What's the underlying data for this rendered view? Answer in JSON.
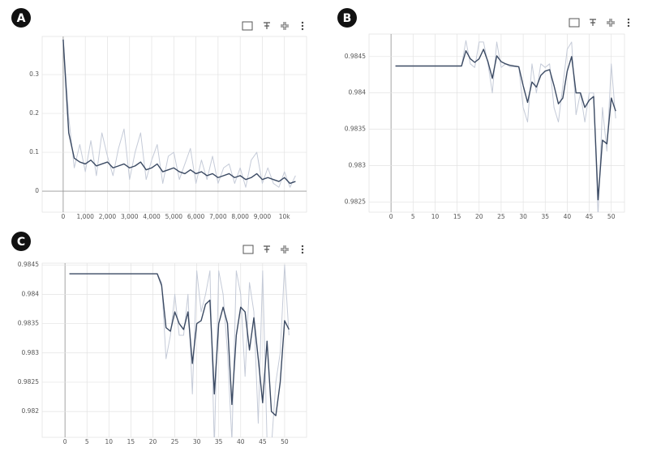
{
  "chart_data": [
    {
      "panel": "A",
      "type": "line",
      "grid": true,
      "x": [
        0,
        250,
        500,
        750,
        1000,
        1250,
        1500,
        1750,
        2000,
        2250,
        2500,
        2750,
        3000,
        3250,
        3500,
        3750,
        4000,
        4250,
        4500,
        4750,
        5000,
        5250,
        5500,
        5750,
        6000,
        6250,
        6500,
        6750,
        7000,
        7250,
        7500,
        7750,
        8000,
        8250,
        8500,
        8750,
        9000,
        9250,
        9500,
        9750,
        10000,
        10250,
        10500
      ],
      "series": [
        {
          "color": "#c5cbd8",
          "values": [
            0.39,
            0.19,
            0.06,
            0.12,
            0.05,
            0.13,
            0.04,
            0.15,
            0.09,
            0.04,
            0.11,
            0.16,
            0.03,
            0.1,
            0.15,
            0.03,
            0.08,
            0.12,
            0.02,
            0.09,
            0.1,
            0.03,
            0.07,
            0.11,
            0.02,
            0.08,
            0.03,
            0.09,
            0.02,
            0.06,
            0.07,
            0.02,
            0.06,
            0.01,
            0.08,
            0.1,
            0.02,
            0.06,
            0.02,
            0.01,
            0.05,
            0.01,
            0.04
          ]
        },
        {
          "color": "#3b4a63",
          "values": [
            0.39,
            0.15,
            0.085,
            0.075,
            0.07,
            0.08,
            0.065,
            0.07,
            0.075,
            0.06,
            0.065,
            0.07,
            0.06,
            0.065,
            0.075,
            0.055,
            0.06,
            0.07,
            0.05,
            0.055,
            0.06,
            0.05,
            0.045,
            0.055,
            0.045,
            0.05,
            0.04,
            0.045,
            0.035,
            0.04,
            0.045,
            0.035,
            0.04,
            0.03,
            0.035,
            0.045,
            0.03,
            0.035,
            0.03,
            0.025,
            0.035,
            0.02,
            0.025
          ]
        }
      ],
      "xlim": [
        -950,
        11000
      ],
      "xticks": [
        0,
        {
          "value": 1000,
          "label": "1,000"
        },
        {
          "value": 2000,
          "label": "2,000"
        },
        {
          "value": 3000,
          "label": "3,000"
        },
        {
          "value": 4000,
          "label": "4,000"
        },
        {
          "value": 5000,
          "label": "5,000"
        },
        {
          "value": 6000,
          "label": "6,000"
        },
        {
          "value": 7000,
          "label": "7,000"
        },
        {
          "value": 8000,
          "label": "8,000"
        },
        {
          "value": 9000,
          "label": "9,000"
        },
        {
          "value": 10000,
          "label": "10k"
        }
      ],
      "ylim": [
        -0.054,
        0.398
      ],
      "yticks": [
        0,
        0.1,
        0.2,
        0.3
      ]
    },
    {
      "panel": "B",
      "type": "line",
      "grid": true,
      "x": [
        1,
        16,
        17,
        18,
        19,
        20,
        21,
        22,
        23,
        24,
        25,
        26,
        27,
        28,
        29,
        30,
        31,
        32,
        33,
        34,
        35,
        36,
        37,
        38,
        39,
        40,
        41,
        42,
        43,
        44,
        45,
        46,
        47,
        48,
        49,
        50,
        51
      ],
      "series": [
        {
          "color": "#c5cbd8",
          "values": [
            0.98437,
            0.98437,
            0.98472,
            0.9844,
            0.98435,
            0.9847,
            0.9847,
            0.9844,
            0.984,
            0.9847,
            0.98435,
            0.9844,
            0.98436,
            0.98436,
            0.98436,
            0.9838,
            0.9836,
            0.9844,
            0.984,
            0.9844,
            0.98435,
            0.9844,
            0.9838,
            0.9836,
            0.9841,
            0.9846,
            0.9847,
            0.9837,
            0.984,
            0.9836,
            0.984,
            0.984,
            0.9823,
            0.9838,
            0.9832,
            0.9844,
            0.98365
          ]
        },
        {
          "color": "#3b4a63",
          "values": [
            0.98437,
            0.98437,
            0.98458,
            0.98447,
            0.98442,
            0.98447,
            0.9846,
            0.98443,
            0.9842,
            0.98451,
            0.98443,
            0.9844,
            0.98438,
            0.98437,
            0.98436,
            0.9841,
            0.98387,
            0.98415,
            0.98408,
            0.98424,
            0.9843,
            0.98432,
            0.9841,
            0.98385,
            0.98393,
            0.9843,
            0.9845,
            0.984,
            0.984,
            0.9838,
            0.9839,
            0.98395,
            0.98253,
            0.98335,
            0.9833,
            0.98393,
            0.98375
          ]
        }
      ],
      "xlim": [
        -5,
        53
      ],
      "xticks": [
        0,
        5,
        10,
        15,
        20,
        25,
        30,
        35,
        40,
        45,
        50
      ],
      "ylim": [
        0.98236,
        0.98481
      ],
      "yticks": [
        0.9845,
        0.984,
        0.9835,
        0.983,
        0.9825
      ]
    },
    {
      "panel": "C",
      "type": "line",
      "grid": true,
      "x": [
        1,
        21,
        22,
        23,
        24,
        25,
        26,
        27,
        28,
        29,
        30,
        31,
        32,
        33,
        34,
        35,
        36,
        37,
        38,
        39,
        40,
        41,
        42,
        43,
        44,
        45,
        46,
        47,
        48,
        49,
        50,
        51
      ],
      "series": [
        {
          "color": "#c5cbd8",
          "values": [
            0.98435,
            0.98435,
            0.9842,
            0.9829,
            0.9833,
            0.984,
            0.9833,
            0.9833,
            0.984,
            0.9823,
            0.9844,
            0.9837,
            0.984,
            0.9844,
            0.9814,
            0.9844,
            0.984,
            0.983,
            0.9815,
            0.9844,
            0.984,
            0.9826,
            0.9842,
            0.9837,
            0.9818,
            0.9844,
            0.9815,
            0.9814,
            0.9825,
            0.983,
            0.9845,
            0.9833
          ]
        },
        {
          "color": "#3b4a63",
          "values": [
            0.98435,
            0.98435,
            0.98415,
            0.98343,
            0.98337,
            0.9837,
            0.9835,
            0.9834,
            0.9837,
            0.98282,
            0.9835,
            0.98355,
            0.98383,
            0.9839,
            0.9823,
            0.9835,
            0.98378,
            0.9835,
            0.98212,
            0.9833,
            0.98378,
            0.9837,
            0.98305,
            0.9836,
            0.9829,
            0.98215,
            0.9832,
            0.982,
            0.98193,
            0.9825,
            0.98355,
            0.9834
          ]
        }
      ],
      "xlim": [
        -5.2,
        55
      ],
      "xticks": [
        0,
        5,
        10,
        15,
        20,
        25,
        30,
        35,
        40,
        45,
        50
      ],
      "ylim": [
        0.98156,
        0.98453
      ],
      "yticks": [
        0.9845,
        0.984,
        0.9835,
        0.983,
        0.9825,
        0.982
      ]
    }
  ]
}
